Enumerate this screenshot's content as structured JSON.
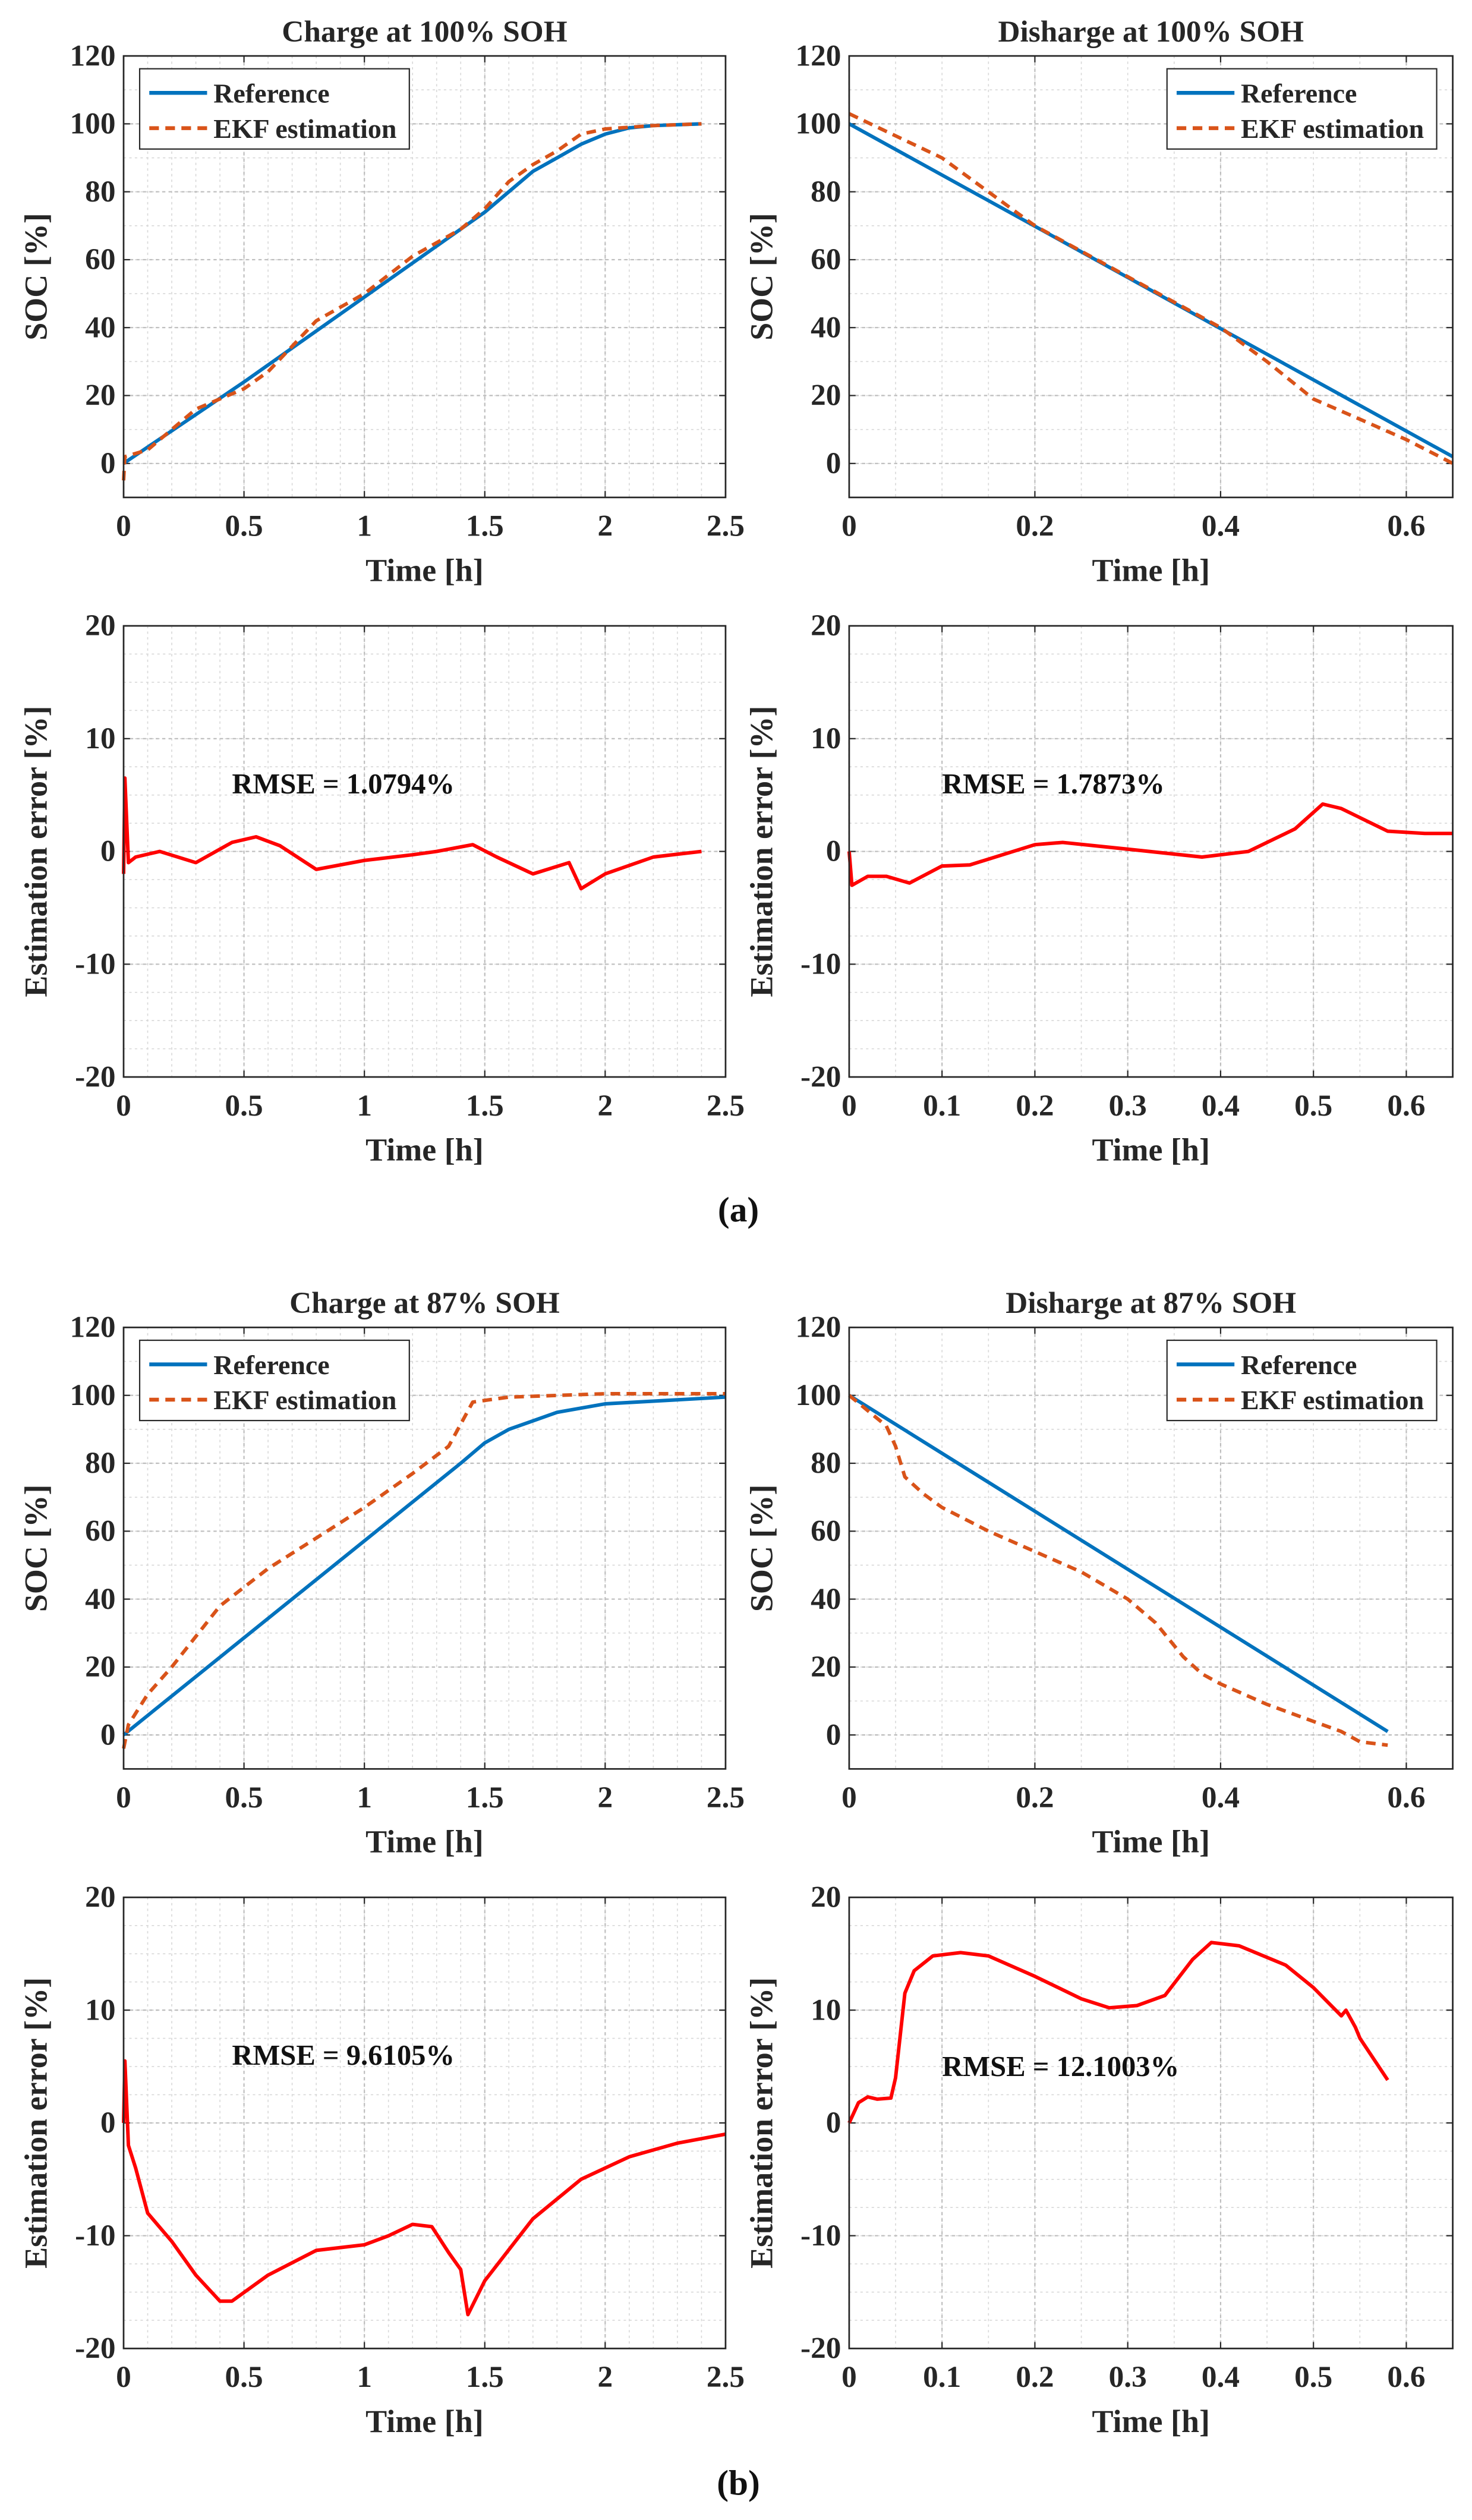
{
  "panel_labels": [
    "(a)",
    "(b)"
  ],
  "colors": {
    "reference": "#0072BD",
    "ekf": "#D95319",
    "error": "#FF0000"
  },
  "chart_data": [
    {
      "type": "line",
      "title": "Charge at 100% SOH",
      "xlabel": "Time [h]",
      "ylabel": "SOC [%]",
      "xlim": [
        0,
        2.5
      ],
      "ylim": [
        -10,
        120
      ],
      "xticks": [
        0,
        0.5,
        1,
        1.5,
        2,
        2.5
      ],
      "xtick_labels": [
        "0",
        "0.5",
        "1",
        "1.5",
        "2",
        "2.5"
      ],
      "yticks": [
        0,
        20,
        40,
        60,
        80,
        100,
        120
      ],
      "ytick_labels": [
        "0",
        "20",
        "40",
        "60",
        "80",
        "100",
        "120"
      ],
      "grid": true,
      "legend": "top-left",
      "series": [
        {
          "name": "Reference",
          "style": "solid",
          "x": [
            0,
            0.5,
            1,
            1.5,
            1.7,
            1.8,
            1.9,
            2.0,
            2.1,
            2.2,
            2.4
          ],
          "y": [
            0,
            24,
            49,
            74,
            86,
            90,
            94,
            97,
            98.8,
            99.5,
            100
          ]
        },
        {
          "name": "EKF estimation",
          "style": "dashed",
          "x": [
            0,
            0.005,
            0.1,
            0.3,
            0.5,
            0.6,
            0.8,
            1,
            1.2,
            1.4,
            1.5,
            1.6,
            1.7,
            1.8,
            1.9,
            2.0,
            2.2,
            2.4
          ],
          "y": [
            -5,
            2,
            4,
            16,
            22,
            27,
            42,
            50,
            61,
            69,
            75,
            83,
            88,
            92,
            97,
            98.5,
            99.5,
            100
          ]
        }
      ]
    },
    {
      "type": "line",
      "title": "Disharge at 100% SOH",
      "xlabel": "Time [h]",
      "ylabel": "SOC [%]",
      "xlim": [
        0,
        0.65
      ],
      "ylim": [
        -10,
        120
      ],
      "xticks": [
        0,
        0.2,
        0.4,
        0.6
      ],
      "xtick_labels": [
        "0",
        "0.2",
        "0.4",
        "0.6"
      ],
      "yticks": [
        0,
        20,
        40,
        60,
        80,
        100,
        120
      ],
      "ytick_labels": [
        "0",
        "20",
        "40",
        "60",
        "80",
        "100",
        "120"
      ],
      "grid": true,
      "legend": "top-right",
      "series": [
        {
          "name": "Reference",
          "style": "solid",
          "x": [
            0,
            0.65
          ],
          "y": [
            100,
            2
          ]
        },
        {
          "name": "EKF estimation",
          "style": "dashed",
          "x": [
            0,
            0.1,
            0.2,
            0.3,
            0.4,
            0.45,
            0.5,
            0.55,
            0.6,
            0.65
          ],
          "y": [
            103,
            90,
            70,
            55,
            40,
            30,
            19,
            13,
            7,
            0
          ]
        }
      ]
    },
    {
      "type": "line",
      "title": "",
      "xlabel": "Time [h]",
      "ylabel": "Estimation error [%]",
      "xlim": [
        0,
        2.5
      ],
      "ylim": [
        -20,
        20
      ],
      "xticks": [
        0,
        0.5,
        1,
        1.5,
        2,
        2.5
      ],
      "xtick_labels": [
        "0",
        "0.5",
        "1",
        "1.5",
        "2",
        "2.5"
      ],
      "yticks": [
        -20,
        -10,
        0,
        10,
        20
      ],
      "ytick_labels": [
        "-20",
        "-10",
        "0",
        "10",
        "20"
      ],
      "grid": true,
      "annotation": {
        "text": "RMSE = 1.0794%",
        "x": 0.45,
        "y": 6
      },
      "series": [
        {
          "name": "Error",
          "style": "error",
          "x": [
            0,
            0.005,
            0.02,
            0.05,
            0.15,
            0.3,
            0.45,
            0.55,
            0.65,
            0.8,
            1.0,
            1.2,
            1.3,
            1.45,
            1.55,
            1.7,
            1.85,
            1.9,
            2.0,
            2.2,
            2.4
          ],
          "y": [
            -2,
            6.5,
            -1,
            -0.5,
            0,
            -1,
            0.8,
            1.3,
            0.5,
            -1.6,
            -0.8,
            -0.3,
            0,
            0.6,
            -0.5,
            -2,
            -1,
            -3.3,
            -2,
            -0.5,
            0
          ]
        }
      ]
    },
    {
      "type": "line",
      "title": "",
      "xlabel": "Time [h]",
      "ylabel": "Estimation error [%]",
      "xlim": [
        0,
        0.65
      ],
      "ylim": [
        -20,
        20
      ],
      "xticks": [
        0,
        0.1,
        0.2,
        0.3,
        0.4,
        0.5,
        0.6
      ],
      "xtick_labels": [
        "0",
        "0.1",
        "0.2",
        "0.3",
        "0.4",
        "0.5",
        "0.6"
      ],
      "yticks": [
        -20,
        -10,
        0,
        10,
        20
      ],
      "ytick_labels": [
        "-20",
        "-10",
        "0",
        "10",
        "20"
      ],
      "grid": true,
      "annotation": {
        "text": "RMSE = 1.7873%",
        "x": 0.1,
        "y": 6
      },
      "series": [
        {
          "name": "Error",
          "style": "error",
          "x": [
            0,
            0.003,
            0.02,
            0.04,
            0.065,
            0.1,
            0.13,
            0.2,
            0.23,
            0.3,
            0.38,
            0.43,
            0.48,
            0.51,
            0.53,
            0.58,
            0.62,
            0.65
          ],
          "y": [
            0,
            -3,
            -2.2,
            -2.2,
            -2.8,
            -1.3,
            -1.2,
            0.6,
            0.8,
            0.2,
            -0.5,
            0,
            2,
            4.2,
            3.8,
            1.8,
            1.6,
            1.6
          ]
        }
      ]
    },
    {
      "type": "line",
      "title": "Charge at 87% SOH",
      "xlabel": "Time [h]",
      "ylabel": "SOC [%]",
      "xlim": [
        0,
        2.5
      ],
      "ylim": [
        -10,
        120
      ],
      "xticks": [
        0,
        0.5,
        1,
        1.5,
        2,
        2.5
      ],
      "xtick_labels": [
        "0",
        "0.5",
        "1",
        "1.5",
        "2",
        "2.5"
      ],
      "yticks": [
        0,
        20,
        40,
        60,
        80,
        100,
        120
      ],
      "ytick_labels": [
        "0",
        "20",
        "40",
        "60",
        "80",
        "100",
        "120"
      ],
      "grid": true,
      "legend": "top-left",
      "series": [
        {
          "name": "Reference",
          "style": "solid",
          "x": [
            0,
            1.4,
            1.5,
            1.6,
            1.8,
            2.0,
            2.5
          ],
          "y": [
            0,
            80,
            86,
            90,
            95,
            97.5,
            99.5
          ]
        },
        {
          "name": "EKF estimation",
          "style": "dashed",
          "x": [
            0,
            0.02,
            0.1,
            0.2,
            0.4,
            0.6,
            0.8,
            1.0,
            1.2,
            1.35,
            1.45,
            1.6,
            2.0,
            2.5
          ],
          "y": [
            -4,
            3,
            12,
            20,
            38,
            49,
            58,
            67,
            77,
            85,
            98,
            99.5,
            100.5,
            100.5
          ]
        }
      ]
    },
    {
      "type": "line",
      "title": "Disharge at 87% SOH",
      "xlabel": "Time [h]",
      "ylabel": "SOC [%]",
      "xlim": [
        0,
        0.65
      ],
      "ylim": [
        -10,
        120
      ],
      "xticks": [
        0,
        0.2,
        0.4,
        0.6
      ],
      "xtick_labels": [
        "0",
        "0.2",
        "0.4",
        "0.6"
      ],
      "yticks": [
        0,
        20,
        40,
        60,
        80,
        100,
        120
      ],
      "ytick_labels": [
        "0",
        "20",
        "40",
        "60",
        "80",
        "100",
        "120"
      ],
      "grid": true,
      "legend": "top-right",
      "series": [
        {
          "name": "Reference",
          "style": "solid",
          "x": [
            0,
            0.58
          ],
          "y": [
            100,
            1
          ]
        },
        {
          "name": "EKF estimation",
          "style": "dashed",
          "x": [
            0,
            0.04,
            0.05,
            0.06,
            0.08,
            0.1,
            0.15,
            0.2,
            0.25,
            0.3,
            0.33,
            0.36,
            0.38,
            0.4,
            0.45,
            0.5,
            0.53,
            0.55,
            0.58
          ],
          "y": [
            100,
            91,
            85,
            76,
            71,
            67,
            60,
            54,
            48,
            40,
            33,
            23,
            18,
            15,
            9,
            4,
            1,
            -2,
            -3
          ]
        }
      ]
    },
    {
      "type": "line",
      "title": "",
      "xlabel": "Time [h]",
      "ylabel": "Estimation error [%]",
      "xlim": [
        0,
        2.5
      ],
      "ylim": [
        -20,
        20
      ],
      "xticks": [
        0,
        0.5,
        1,
        1.5,
        2,
        2.5
      ],
      "xtick_labels": [
        "0",
        "0.5",
        "1",
        "1.5",
        "2",
        "2.5"
      ],
      "yticks": [
        -20,
        -10,
        0,
        10,
        20
      ],
      "ytick_labels": [
        "-20",
        "-10",
        "0",
        "10",
        "20"
      ],
      "grid": true,
      "annotation": {
        "text": "RMSE = 9.6105%",
        "x": 0.45,
        "y": 6
      },
      "series": [
        {
          "name": "Error",
          "style": "error",
          "x": [
            0,
            0.005,
            0.02,
            0.05,
            0.1,
            0.2,
            0.3,
            0.4,
            0.45,
            0.6,
            0.8,
            1.0,
            1.1,
            1.2,
            1.28,
            1.35,
            1.4,
            1.43,
            1.5,
            1.7,
            1.9,
            2.1,
            2.3,
            2.5
          ],
          "y": [
            0,
            5.5,
            -2,
            -4,
            -8,
            -10.5,
            -13.5,
            -15.8,
            -15.8,
            -13.5,
            -11.3,
            -10.8,
            -10,
            -9,
            -9.2,
            -11.5,
            -13,
            -17,
            -14,
            -8.5,
            -5,
            -3,
            -1.8,
            -1
          ]
        }
      ]
    },
    {
      "type": "line",
      "title": "",
      "xlabel": "Time [h]",
      "ylabel": "Estimation error [%]",
      "xlim": [
        0,
        0.65
      ],
      "ylim": [
        -20,
        20
      ],
      "xticks": [
        0,
        0.1,
        0.2,
        0.3,
        0.4,
        0.5,
        0.6
      ],
      "xtick_labels": [
        "0",
        "0.1",
        "0.2",
        "0.3",
        "0.4",
        "0.5",
        "0.6"
      ],
      "yticks": [
        -20,
        -10,
        0,
        10,
        20
      ],
      "ytick_labels": [
        "-20",
        "-10",
        "0",
        "10",
        "20"
      ],
      "grid": true,
      "annotation": {
        "text": "RMSE = 12.1003%",
        "x": 0.1,
        "y": 5
      },
      "series": [
        {
          "name": "Error",
          "style": "error",
          "x": [
            0,
            0.01,
            0.02,
            0.03,
            0.045,
            0.05,
            0.06,
            0.07,
            0.09,
            0.12,
            0.15,
            0.2,
            0.25,
            0.28,
            0.31,
            0.34,
            0.37,
            0.39,
            0.42,
            0.47,
            0.5,
            0.53,
            0.535,
            0.545,
            0.55,
            0.58
          ],
          "y": [
            0,
            1.8,
            2.3,
            2.1,
            2.2,
            4,
            11.5,
            13.5,
            14.8,
            15.1,
            14.8,
            13,
            11,
            10.2,
            10.4,
            11.3,
            14.5,
            16,
            15.7,
            14,
            12,
            9.5,
            10,
            8.5,
            7.5,
            3.8
          ]
        }
      ]
    }
  ]
}
